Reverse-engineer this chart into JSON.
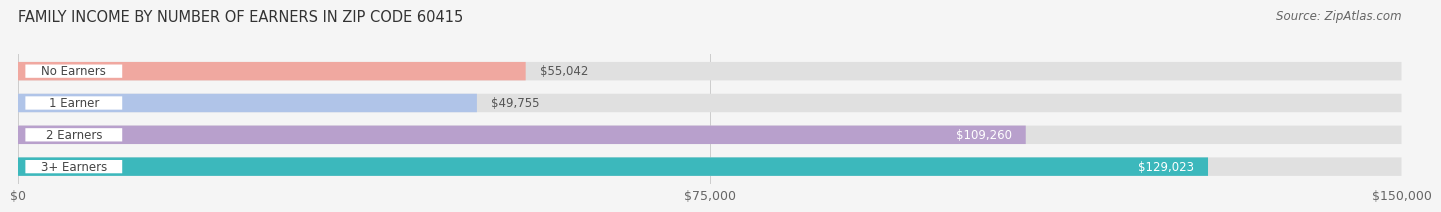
{
  "title": "FAMILY INCOME BY NUMBER OF EARNERS IN ZIP CODE 60415",
  "source": "Source: ZipAtlas.com",
  "categories": [
    "No Earners",
    "1 Earner",
    "2 Earners",
    "3+ Earners"
  ],
  "values": [
    55042,
    49755,
    109260,
    129023
  ],
  "labels": [
    "$55,042",
    "$49,755",
    "$109,260",
    "$129,023"
  ],
  "bar_colors": [
    "#f0a8a0",
    "#b0c4e8",
    "#b8a0cc",
    "#3cb8bc"
  ],
  "bar_bg_color": "#e0e0e0",
  "label_colors": [
    "#555555",
    "#555555",
    "#ffffff",
    "#ffffff"
  ],
  "xlim": [
    0,
    150000
  ],
  "xticks": [
    0,
    75000,
    150000
  ],
  "xticklabels": [
    "$0",
    "$75,000",
    "$150,000"
  ],
  "title_fontsize": 10.5,
  "source_fontsize": 8.5,
  "tick_fontsize": 9,
  "bar_label_fontsize": 8.5,
  "category_fontsize": 8.5,
  "background_color": "#f5f5f5",
  "fig_width": 14.06,
  "fig_height": 2.33
}
